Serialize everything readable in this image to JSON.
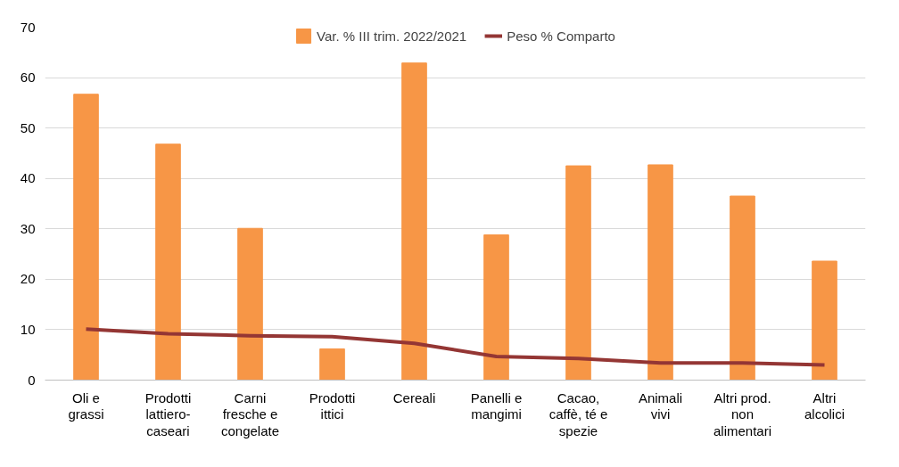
{
  "chart_data": {
    "type": "bar",
    "categories": [
      "Oli e grassi",
      "Prodotti lattiero-caseari",
      "Carni fresche e congelate",
      "Prodotti ittici",
      "Cereali",
      "Panelli e mangimi",
      "Cacao, caffè, té e spezie",
      "Animali vivi",
      "Altri prod. non alimentari",
      "Altri alcolici"
    ],
    "series": [
      {
        "name": "Var. % III trim. 2022/2021",
        "color": "#f79646",
        "values": [
          56.7,
          46.8,
          30.1,
          6.2,
          62.9,
          28.8,
          42.5,
          42.7,
          36.5,
          23.6
        ]
      },
      {
        "name": "Peso % Comparto",
        "color": "#943634",
        "type": "line",
        "values": [
          10.1,
          9.2,
          8.8,
          8.6,
          7.3,
          4.7,
          4.3,
          3.4,
          3.4,
          3.0
        ]
      }
    ],
    "ylim": [
      0,
      70
    ],
    "yticks": [
      0,
      10,
      20,
      30,
      40,
      50,
      60,
      70
    ],
    "grid": "y",
    "legend": "top",
    "line_style": "solid",
    "marker": "none"
  }
}
